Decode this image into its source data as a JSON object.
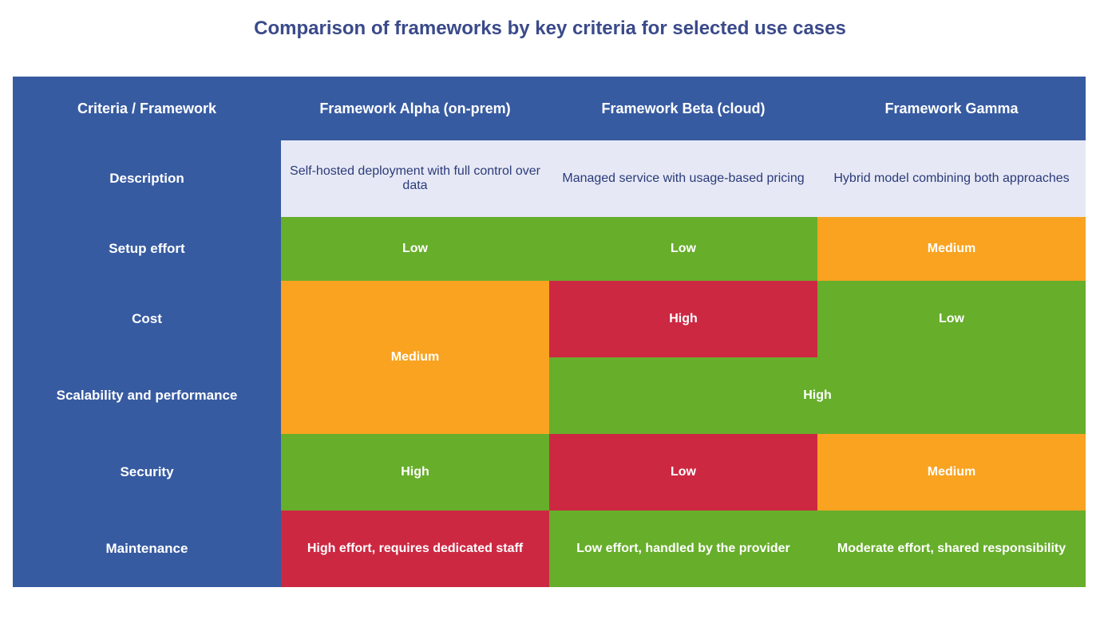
{
  "title": "Comparison of frameworks by key criteria for selected use cases",
  "header": {
    "corner": "Criteria / Framework",
    "col1": "Framework Alpha (on-prem)",
    "col2": "Framework Beta (cloud)",
    "col3": "Framework Gamma"
  },
  "description_row": {
    "label": "Description",
    "col1": "Self-hosted deployment with full control over data",
    "col2": "Managed service with usage-based pricing",
    "col3": "Hybrid model combining both approaches"
  },
  "rows": [
    {
      "label": "Setup effort",
      "cells": [
        {
          "text": "Low",
          "color": "green"
        },
        {
          "text": "Low",
          "color": "green"
        },
        {
          "text": "Medium",
          "color": "orange"
        }
      ]
    },
    {
      "label": "Cost",
      "cells": [
        {
          "text": "Medium",
          "color": "orange"
        },
        {
          "text": "High",
          "color": "red"
        },
        {
          "text": "Low",
          "color": "green"
        }
      ]
    },
    {
      "label": "Scalability and performance",
      "cells": [
        {
          "text": "Medium",
          "color": "orange"
        },
        {
          "text": "High",
          "color": "green"
        },
        {
          "text": "High",
          "color": "green"
        }
      ]
    },
    {
      "label": "Security",
      "cells": [
        {
          "text": "High",
          "color": "green"
        },
        {
          "text": "Low",
          "color": "red"
        },
        {
          "text": "Medium",
          "color": "orange"
        }
      ]
    },
    {
      "label": "Maintenance",
      "cells": [
        {
          "text": "High effort, requires dedicated staff",
          "color": "red"
        },
        {
          "text": "Low effort, handled by the provider",
          "color": "green"
        },
        {
          "text": "Moderate effort, shared responsibility",
          "color": "green"
        }
      ]
    }
  ],
  "colors": {
    "green": "#67ae2b",
    "orange": "#f9a321",
    "red": "#cd2842",
    "header": "#375ba1",
    "description_bg": "#e6e9f5"
  }
}
